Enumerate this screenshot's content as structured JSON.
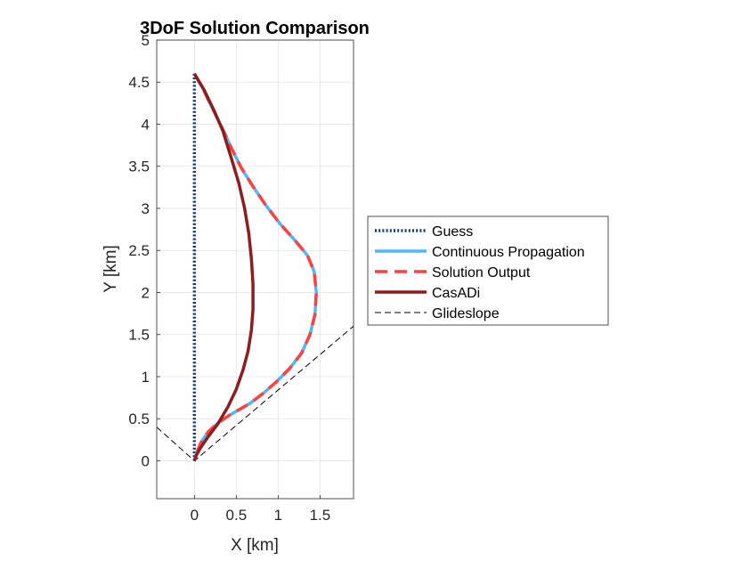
{
  "chart_data": {
    "type": "line",
    "title": "3DoF Solution Comparison",
    "xlabel": "X [km]",
    "ylabel": "Y [km]",
    "xlim": [
      -0.45,
      1.9
    ],
    "ylim": [
      -0.45,
      5.0
    ],
    "xticks": [
      0,
      0.5,
      1,
      1.5
    ],
    "xtick_labels": [
      "0",
      "0.5",
      "1",
      "1.5"
    ],
    "yticks": [
      0,
      0.5,
      1,
      1.5,
      2,
      2.5,
      3,
      3.5,
      4,
      4.5,
      5
    ],
    "ytick_labels": [
      "0",
      "0.5",
      "1",
      "1.5",
      "2",
      "2.5",
      "3",
      "3.5",
      "4",
      "4.5",
      "5"
    ],
    "grid": true,
    "legend_position": "outside-right",
    "series": [
      {
        "name": "Guess",
        "color": "#0c3b7a",
        "style": "dotted",
        "x": [
          0,
          0
        ],
        "y": [
          4.6,
          0
        ]
      },
      {
        "name": "Continuous Propagation",
        "color": "#4db8ff",
        "style": "solid",
        "x": [
          0.0,
          0.1,
          0.2,
          0.32,
          0.44,
          0.56,
          0.7,
          0.85,
          1.02,
          1.2,
          1.35,
          1.43,
          1.455,
          1.44,
          1.38,
          1.28,
          1.14,
          0.98,
          0.82,
          0.66,
          0.52,
          0.4,
          0.28,
          0.17,
          0.08,
          0.03,
          0.0
        ],
        "y": [
          4.6,
          4.43,
          4.22,
          3.98,
          3.72,
          3.48,
          3.26,
          3.04,
          2.82,
          2.62,
          2.44,
          2.25,
          2.0,
          1.74,
          1.5,
          1.28,
          1.1,
          0.94,
          0.8,
          0.68,
          0.6,
          0.53,
          0.45,
          0.35,
          0.22,
          0.1,
          0.0
        ]
      },
      {
        "name": "Solution Output",
        "color": "#ff4040",
        "style": "dashed",
        "x": [
          0.0,
          0.1,
          0.2,
          0.32,
          0.44,
          0.56,
          0.7,
          0.85,
          1.02,
          1.2,
          1.35,
          1.43,
          1.455,
          1.44,
          1.38,
          1.28,
          1.14,
          0.98,
          0.82,
          0.66,
          0.52,
          0.4,
          0.28,
          0.17,
          0.08,
          0.03,
          0.0
        ],
        "y": [
          4.6,
          4.43,
          4.22,
          3.98,
          3.72,
          3.48,
          3.26,
          3.04,
          2.82,
          2.62,
          2.44,
          2.25,
          2.0,
          1.74,
          1.5,
          1.28,
          1.1,
          0.94,
          0.8,
          0.68,
          0.6,
          0.53,
          0.45,
          0.35,
          0.22,
          0.1,
          0.0
        ]
      },
      {
        "name": "CasADi",
        "color": "#8b1e1e",
        "style": "solid",
        "x": [
          0.0,
          0.12,
          0.24,
          0.34,
          0.44,
          0.53,
          0.6,
          0.65,
          0.68,
          0.7,
          0.7,
          0.68,
          0.64,
          0.58,
          0.5,
          0.4,
          0.28,
          0.16,
          0.07,
          0.02,
          0.0
        ],
        "y": [
          4.6,
          4.4,
          4.15,
          3.92,
          3.6,
          3.3,
          3.0,
          2.7,
          2.4,
          2.1,
          1.8,
          1.55,
          1.3,
          1.08,
          0.85,
          0.64,
          0.44,
          0.28,
          0.15,
          0.06,
          0.0
        ]
      },
      {
        "name": "Glideslope",
        "color": "#000000",
        "style": "dashed-thin",
        "x": [
          -0.45,
          0,
          1.9
        ],
        "y": [
          0.4,
          0,
          1.6
        ]
      }
    ]
  }
}
